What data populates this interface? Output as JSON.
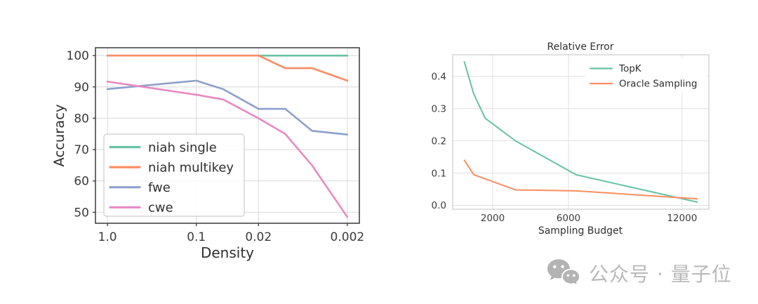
{
  "watermark": {
    "icon": "wechat-icon",
    "text": "公众号 · 量子位",
    "color": "#b9b9b9"
  },
  "chart_data": [
    {
      "id": "accuracy-vs-density",
      "type": "line",
      "title": "",
      "xlabel": "Density",
      "ylabel": "Accuracy",
      "x_scale": "log",
      "x_axis_direction": "decreasing",
      "xlim": [
        1.365,
        0.001465
      ],
      "ylim": [
        46.5,
        102.5
      ],
      "grid": true,
      "x_ticks": [
        1.0,
        0.1,
        0.02,
        0.002
      ],
      "x_tick_labels": [
        "1.0",
        "0.1",
        "0.02",
        "0.002"
      ],
      "y_ticks": [
        50,
        60,
        70,
        80,
        90,
        100
      ],
      "y_tick_labels": [
        "50",
        "60",
        "70",
        "80",
        "90",
        "100"
      ],
      "legend_position": "lower-left",
      "legend_frame": true,
      "series": [
        {
          "name": "niah single",
          "color": "#66c2a5",
          "x": [
            1.0,
            0.1,
            0.05,
            0.02,
            0.01,
            0.005,
            0.002
          ],
          "y": [
            100,
            100,
            100,
            100,
            100,
            100,
            100
          ]
        },
        {
          "name": "niah multikey",
          "color": "#fc8d62",
          "x": [
            1.0,
            0.1,
            0.05,
            0.02,
            0.01,
            0.005,
            0.002
          ],
          "y": [
            100,
            100,
            100,
            100,
            96,
            96,
            92
          ]
        },
        {
          "name": "fwe",
          "color": "#8da0cb",
          "x": [
            1.0,
            0.1,
            0.05,
            0.02,
            0.01,
            0.005,
            0.002
          ],
          "y": [
            89.3,
            92,
            89.3,
            83,
            83,
            76,
            74.8
          ]
        },
        {
          "name": "cwe",
          "color": "#e78ac3",
          "x": [
            1.0,
            0.1,
            0.05,
            0.02,
            0.01,
            0.005,
            0.002
          ],
          "y": [
            91.7,
            87.5,
            86,
            80,
            75,
            65,
            48.5
          ]
        }
      ]
    },
    {
      "id": "relative-error",
      "type": "line",
      "title": "Relative Error",
      "xlabel": "Sampling Budget",
      "ylabel": "",
      "x_scale": "linear",
      "xlim": [
        -115,
        13415
      ],
      "ylim": [
        -0.012,
        0.467
      ],
      "grid": true,
      "x_ticks": [
        2000,
        6000,
        12000
      ],
      "x_tick_labels": [
        "2000",
        "6000",
        "12000"
      ],
      "y_ticks": [
        0.0,
        0.1,
        0.2,
        0.3,
        0.4
      ],
      "y_tick_labels": [
        "0.0",
        "0.1",
        "0.2",
        "0.3",
        "0.4"
      ],
      "legend_position": "upper-right",
      "legend_frame": false,
      "series": [
        {
          "name": "TopK",
          "color": "#66c2a5",
          "x": [
            500,
            1000,
            1600,
            3200,
            6400,
            12800
          ],
          "y": [
            0.445,
            0.345,
            0.27,
            0.2,
            0.095,
            0.01
          ]
        },
        {
          "name": "Oracle Sampling",
          "color": "#fc8d62",
          "x": [
            500,
            1000,
            3200,
            6400,
            12800
          ],
          "y": [
            0.14,
            0.095,
            0.048,
            0.045,
            0.02
          ]
        }
      ]
    }
  ]
}
